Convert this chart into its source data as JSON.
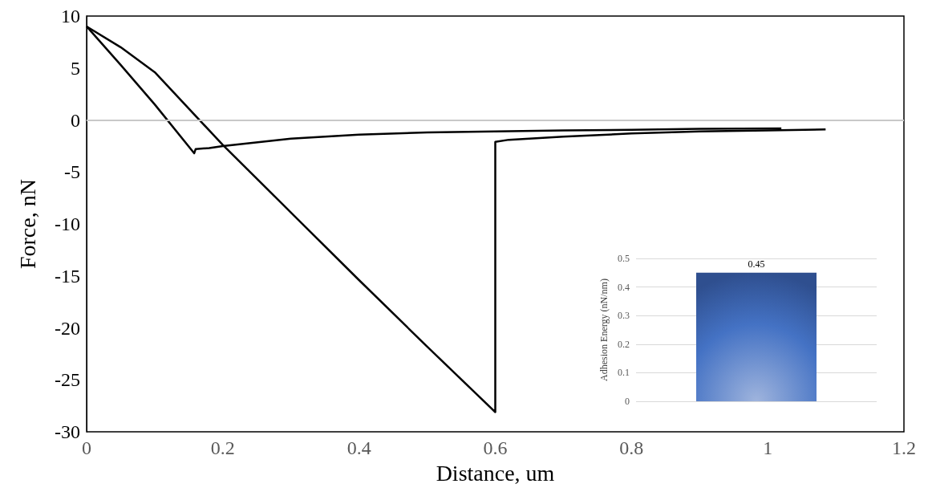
{
  "chart_data": [
    {
      "type": "line",
      "xlabel": "Distance, um",
      "ylabel": "Force, nN",
      "xlim": [
        0,
        1.2
      ],
      "xticks": [
        0,
        0.2,
        0.4,
        0.6,
        0.8,
        1,
        1.2
      ],
      "ylim": [
        -30,
        10
      ],
      "yticks": [
        -30,
        -25,
        -20,
        -15,
        -10,
        -5,
        0,
        5,
        10
      ],
      "grid": false,
      "marker": "none",
      "line_style": "solid",
      "ref_lines": [
        {
          "axis": "y",
          "value": 0,
          "color": "#c8c8c8"
        }
      ],
      "series": [
        {
          "color": "#000000",
          "x": [
            0,
            0.05,
            0.1,
            0.158,
            0.16,
            0.18,
            0.2,
            0.3,
            0.4,
            0.5,
            0.6,
            0.7,
            0.8,
            0.9,
            1.02
          ],
          "values": [
            9,
            5.3,
            1.5,
            -3.2,
            -2.8,
            -2.7,
            -2.5,
            -1.8,
            -1.4,
            -1.2,
            -1.1,
            -1.0,
            -0.95,
            -0.85,
            -0.8
          ]
        },
        {
          "color": "#000000",
          "x": [
            0,
            0.05,
            0.1,
            0.2,
            0.3,
            0.4,
            0.5,
            0.6,
            0.6,
            0.62,
            0.7,
            0.8,
            0.9,
            1,
            1.085
          ],
          "values": [
            9,
            7,
            4.6,
            -2.4,
            -8.9,
            -15.4,
            -21.8,
            -28.1,
            -2.1,
            -1.9,
            -1.6,
            -1.3,
            -1.1,
            -1,
            -0.9
          ]
        }
      ]
    },
    {
      "type": "bar",
      "ylabel": "Adhesion Energy (nN/nm)",
      "categories": [
        null
      ],
      "values": [
        0.45
      ],
      "color": "#4472c4",
      "data_labels": true,
      "ylim": [
        0,
        0.5
      ],
      "yticks": [
        0,
        0.1,
        0.2,
        0.3,
        0.4,
        0.5
      ],
      "grid": "y"
    }
  ]
}
